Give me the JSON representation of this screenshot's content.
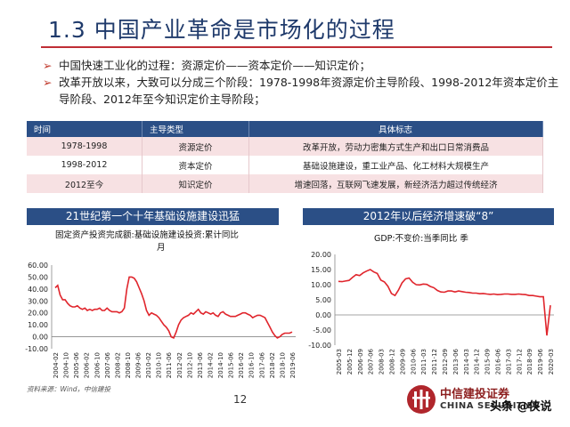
{
  "title": "1.3 中国产业革命是市场化的过程",
  "bullets": [
    "中国快速工业化的过程：资源定价——资本定价——知识定价；",
    "改革开放以来，大致可以分成三个阶段：1978-1998年资源定价主导阶段、1998-2012年资本定价主导阶段、2012年至今知识定价主导阶段；"
  ],
  "table": {
    "headers": [
      "时间",
      "主导类型",
      "具体标志"
    ],
    "rows": [
      [
        "1978-1998",
        "资源定价",
        "改革开放，劳动力密集方式生产和出口日常消费品"
      ],
      [
        "1998-2012",
        "资本定价",
        "基础设施建设，重工业产品、化工材料大规模生产"
      ],
      [
        "2012至今",
        "知识定价",
        "增速回落，互联网飞速发展，新经济活力超过传统经济"
      ]
    ]
  },
  "left_panel": {
    "title": "21世纪第一个十年基础设施建设迅猛",
    "subtitle": "固定资产投资完成额:基础设施建设投资:累计同比",
    "subtitle2": "月"
  },
  "right_panel": {
    "title": "2012年以后经济增速破“8”",
    "subtitle": "GDP:不变价:当季同比  季"
  },
  "source": "资料来源：Wind，中信建投",
  "page_number": "12",
  "logo": {
    "cn": "中信建投证券",
    "en": "CHINA SECURITIES"
  },
  "watermark": "头条 @侠说",
  "colors": {
    "accent": "#bf2e35",
    "header_blue": "#2b4f86",
    "line_red": "#e0252c"
  },
  "chart_data": [
    {
      "type": "line",
      "title": "固定资产投资完成额:基础设施建设投资:累计同比",
      "ylim": [
        -10,
        60
      ],
      "yticks": [
        "60.00",
        "50.00",
        "40.00",
        "30.00",
        "20.00",
        "10.00",
        "0.00",
        "-10.00"
      ],
      "xticks": [
        "2004-02",
        "2004-10",
        "2005-06",
        "2006-02",
        "2006-10",
        "2007-06",
        "2008-02",
        "2008-10",
        "2009-06",
        "2010-02",
        "2010-10",
        "2011-06",
        "2012-02",
        "2012-10",
        "2013-06",
        "2014-02",
        "2014-10",
        "2015-06",
        "2016-02",
        "2016-10",
        "2017-06",
        "2018-02",
        "2018-10",
        "2019-06"
      ],
      "series": [
        {
          "values": [
            41,
            43,
            35,
            31,
            31,
            28,
            26,
            25,
            25,
            26,
            24,
            23,
            24,
            22,
            23,
            22,
            23,
            23,
            24,
            22,
            22,
            24,
            22,
            21,
            21,
            21,
            20,
            21,
            24,
            40,
            50,
            50,
            49,
            46,
            41,
            36,
            30,
            22,
            18,
            20,
            19,
            18,
            16,
            13,
            10,
            8,
            5,
            0,
            -1,
            4,
            10,
            14,
            16,
            17,
            18,
            20,
            19,
            21,
            23,
            20,
            19,
            21,
            20,
            19,
            20,
            18,
            17,
            20,
            21,
            19,
            18,
            17,
            17,
            17,
            18,
            19,
            20,
            20,
            19,
            18,
            16,
            17,
            18,
            18,
            17,
            16,
            12,
            8,
            4,
            1,
            -1,
            0,
            2,
            3,
            3,
            3,
            4
          ]
        }
      ]
    },
    {
      "type": "line",
      "title": "GDP:不变价:当季同比",
      "ylim": [
        -10,
        20
      ],
      "yticks": [
        "20.00",
        "15.00",
        "10.00",
        "5.00",
        "0.00",
        "-5.00",
        "-10.00"
      ],
      "xticks": [
        "2005-03",
        "2005-12",
        "2006-09",
        "2007-06",
        "2008-03",
        "2008-12",
        "2009-09",
        "2010-06",
        "2011-03",
        "2011-12",
        "2012-09",
        "2013-06",
        "2014-03",
        "2014-12",
        "2015-09",
        "2016-06",
        "2017-03",
        "2017-12",
        "2018-09",
        "2019-06",
        "2020-03"
      ],
      "series": [
        {
          "values": [
            11.1,
            11,
            11.2,
            11.4,
            12.4,
            13.3,
            13.0,
            13.9,
            14.5,
            15.0,
            14.2,
            13.7,
            11.5,
            10.9,
            9.5,
            7.1,
            6.4,
            8.2,
            10.6,
            11.9,
            12.2,
            10.8,
            10.0,
            9.9,
            10.2,
            10.1,
            9.4,
            9.0,
            8.1,
            7.6,
            7.5,
            7.9,
            7.9,
            7.6,
            7.9,
            7.7,
            7.5,
            7.4,
            7.2,
            7.2,
            7.0,
            7.1,
            6.9,
            6.8,
            6.9,
            6.7,
            6.8,
            6.9,
            6.9,
            6.8,
            6.8,
            6.9,
            6.8,
            6.7,
            6.4,
            6.4,
            6.2,
            6.0,
            6.0,
            -6.8,
            3.2
          ]
        }
      ]
    }
  ]
}
